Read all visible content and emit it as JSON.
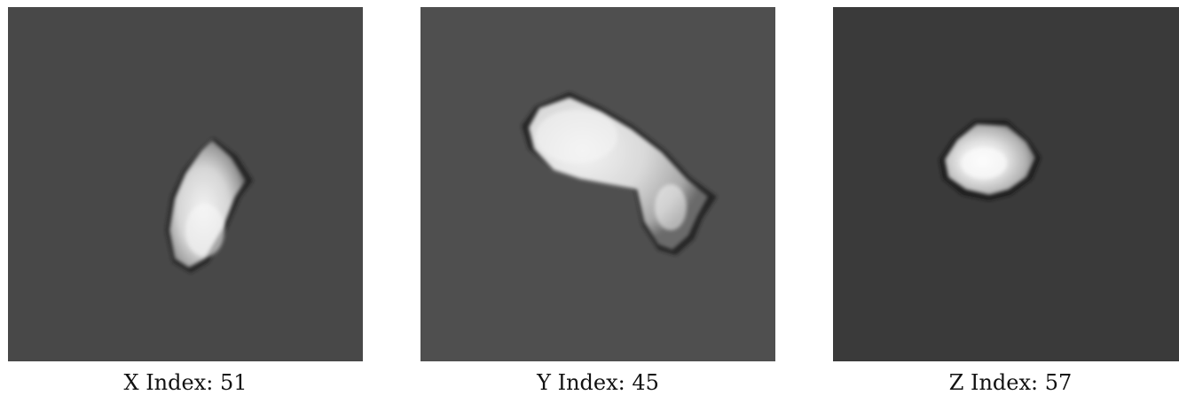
{
  "slices": [
    {
      "axis": "X",
      "caption": "X Index: 51",
      "index": 51,
      "background": "#484848"
    },
    {
      "axis": "Y",
      "caption": "Y Index: 45",
      "index": 45,
      "background": "#4f4f4f"
    },
    {
      "axis": "Z",
      "caption": "Z Index: 57",
      "index": 57,
      "background": "#3a3a3a"
    }
  ]
}
